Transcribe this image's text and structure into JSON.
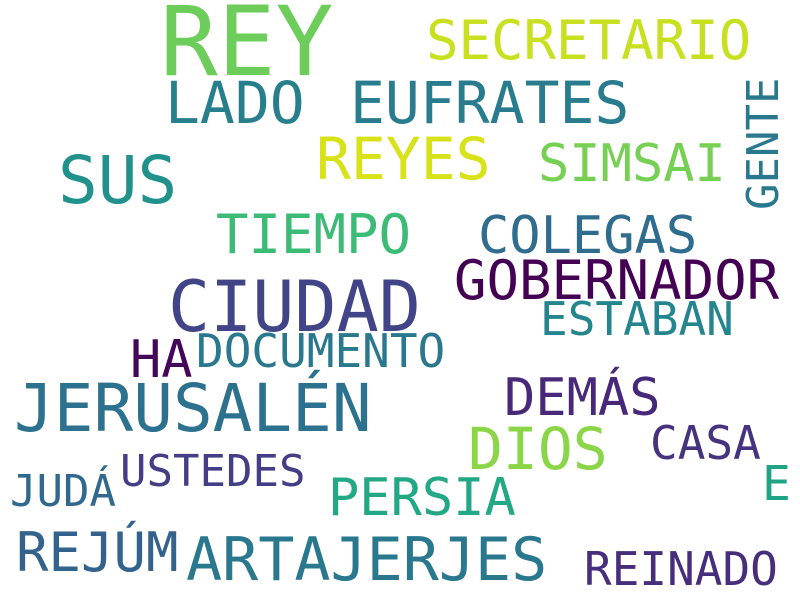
{
  "words": [
    {
      "text": "REY",
      "color": "#6ccd5a"
    },
    {
      "text": "SECRETARIO",
      "color": "#c8e020"
    },
    {
      "text": "LADO",
      "color": "#277f8e"
    },
    {
      "text": "EUFRATES",
      "color": "#287c8e"
    },
    {
      "text": "GENTE",
      "color": "#2a788e"
    },
    {
      "text": "REYES",
      "color": "#d8e219"
    },
    {
      "text": "SIMSAI",
      "color": "#75d054"
    },
    {
      "text": "SUS",
      "color": "#21918c"
    },
    {
      "text": "TIEMPO",
      "color": "#3bbb75"
    },
    {
      "text": "COLEGAS",
      "color": "#2f6c8e"
    },
    {
      "text": "GOBERNADOR",
      "color": "#440154"
    },
    {
      "text": "CIUDAD",
      "color": "#414487"
    },
    {
      "text": "ESTABAN",
      "color": "#25858e"
    },
    {
      "text": "HA",
      "color": "#450559"
    },
    {
      "text": "DOCUMENTO",
      "color": "#2a788e"
    },
    {
      "text": "JERUSALÉN",
      "color": "#2c718e"
    },
    {
      "text": "DEMÁS",
      "color": "#482878"
    },
    {
      "text": "DIOS",
      "color": "#8bd646"
    },
    {
      "text": "CASA",
      "color": "#46327e"
    },
    {
      "text": "E",
      "color": "#20a486"
    },
    {
      "text": "USTEDES",
      "color": "#433e85"
    },
    {
      "text": "JUDÁ",
      "color": "#31688e"
    },
    {
      "text": "PERSIA",
      "color": "#22a884"
    },
    {
      "text": "REJÚM",
      "color": "#33638d"
    },
    {
      "text": "ARTAJERJES",
      "color": "#2a788e"
    },
    {
      "text": "REINADO",
      "color": "#472d7b"
    }
  ]
}
